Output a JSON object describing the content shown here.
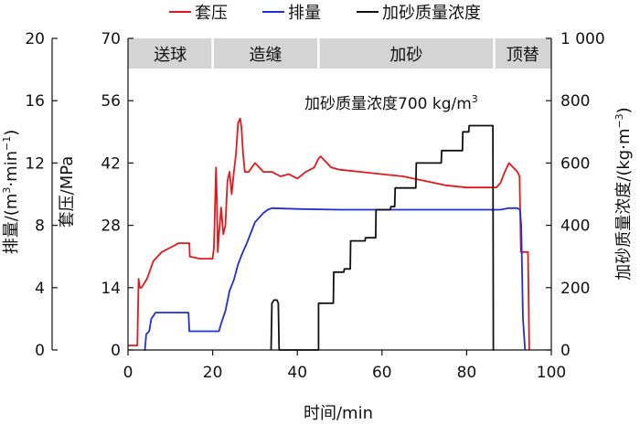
{
  "chart_data": {
    "type": "line",
    "title": "",
    "xlabel": "时间/min",
    "xlim": [
      0,
      100
    ],
    "x_ticks": [
      "0",
      "20",
      "40",
      "60",
      "80",
      "100"
    ],
    "axes": {
      "rate": {
        "label": "排量/(m³·min⁻¹)",
        "label_main": "排量/(m",
        "label_sup1": "3",
        "label_mid": "·min",
        "label_sup2": "−1",
        "label_end": ")",
        "range": [
          0,
          20
        ],
        "ticks": [
          "0",
          "4",
          "8",
          "12",
          "16",
          "20"
        ]
      },
      "pressure": {
        "label": "套压/MPa",
        "range": [
          0,
          70
        ],
        "ticks": [
          "0",
          "14",
          "28",
          "42",
          "56",
          "70"
        ]
      },
      "concentration": {
        "label": "加砂质量浓度/(kg·m⁻³)",
        "label_main": "加砂质量浓度/(kg·m",
        "label_sup": "−3",
        "label_end": ")",
        "range": [
          0,
          1000
        ],
        "ticks": [
          "0",
          "200",
          "400",
          "600",
          "800",
          "1 000"
        ]
      }
    },
    "legend": {
      "placement": "top",
      "entries": [
        {
          "name": "套压",
          "color": "#e0191d"
        },
        {
          "name": "排量",
          "color": "#1f2fd0"
        },
        {
          "name": "加砂质量浓度",
          "color": "#111111"
        }
      ]
    },
    "stages": [
      {
        "label": "送球",
        "x0": 0,
        "x1": 20
      },
      {
        "label": "造缝",
        "x0": 20,
        "x1": 45
      },
      {
        "label": "加砂",
        "x0": 45,
        "x1": 86.5
      },
      {
        "label": "顶替",
        "x0": 86.5,
        "x1": 100
      }
    ],
    "annotation": {
      "text": "加砂质量浓度700 kg/m",
      "sup": "3"
    },
    "series": [
      {
        "name": "套压",
        "axis": "pressure",
        "color": "#e0191d",
        "x": [
          0,
          2,
          2.2,
          2.5,
          2.8,
          3.2,
          4.5,
          6,
          8,
          10,
          12,
          14.5,
          14.6,
          17,
          20,
          20.3,
          20.8,
          21.0,
          21.2,
          21.5,
          22.0,
          22.5,
          23.0,
          23.5,
          24.0,
          24.5,
          25.0,
          25.5,
          26.0,
          26.5,
          26.8,
          27.2,
          27.6,
          28.5,
          30,
          32,
          34,
          36,
          38,
          40,
          42,
          43,
          44,
          45,
          45.5,
          46,
          47,
          48,
          50,
          55,
          60,
          65,
          70,
          75,
          80,
          86,
          87,
          88,
          89,
          90,
          91,
          92,
          92.5,
          92.8,
          93.5,
          94.5,
          94.8
        ],
        "y": [
          1,
          1,
          1,
          16,
          14,
          14,
          16,
          20,
          22,
          23,
          24,
          24,
          21,
          20.5,
          20.5,
          23,
          41,
          34,
          22,
          26,
          32,
          26,
          28,
          38,
          40,
          35,
          40,
          44,
          51,
          52,
          50,
          44,
          40,
          40,
          42,
          40,
          40,
          39,
          39.5,
          38.5,
          40,
          40.5,
          41,
          43,
          43.5,
          43,
          42,
          41,
          40.5,
          40,
          39.5,
          39,
          38,
          37,
          36.5,
          36.5,
          36.5,
          37.5,
          40,
          42,
          41,
          40,
          39,
          22,
          22,
          22,
          0
        ]
      },
      {
        "name": "排量",
        "axis": "rate",
        "color": "#1f2fd0",
        "x": [
          3.8,
          4.0,
          4.3,
          5.0,
          5.5,
          6.5,
          14.3,
          14.5,
          21.5,
          22.0,
          23,
          24,
          25,
          26,
          27,
          28,
          29,
          30,
          31,
          32,
          33,
          34,
          40,
          50,
          60,
          70,
          80,
          85,
          88,
          90,
          92,
          92.6,
          92.9,
          93.3,
          93.8
        ],
        "y": [
          0,
          0,
          1,
          1.2,
          2,
          2.4,
          2.4,
          1.2,
          1.2,
          1.7,
          2.5,
          3.8,
          4.5,
          5.5,
          6.2,
          6.8,
          7.5,
          8.2,
          8.5,
          8.8,
          9.0,
          9.1,
          9.05,
          9.0,
          9.0,
          9.0,
          9.0,
          9.0,
          9.0,
          9.1,
          9.1,
          9.0,
          8.0,
          2.0,
          0
        ]
      },
      {
        "name": "加砂质量浓度",
        "axis": "concentration",
        "color": "#111111",
        "x": [
          33.8,
          34.0,
          34.5,
          35.2,
          35.5,
          35.7,
          45,
          45.0,
          48.5,
          48.6,
          51,
          51.1,
          52.5,
          52.6,
          56,
          56.1,
          58.5,
          58.6,
          62,
          62.1,
          63,
          63.1,
          68,
          68.1,
          74,
          74.1,
          79,
          79.1,
          80.5,
          80.6,
          86.2,
          86.3,
          86.5
        ],
        "y": [
          0,
          150,
          160,
          160,
          150,
          0,
          0,
          150,
          150,
          250,
          250,
          260,
          260,
          350,
          350,
          360,
          360,
          450,
          450,
          460,
          460,
          520,
          520,
          600,
          600,
          640,
          640,
          700,
          700,
          720,
          720,
          0,
          0
        ]
      }
    ]
  }
}
